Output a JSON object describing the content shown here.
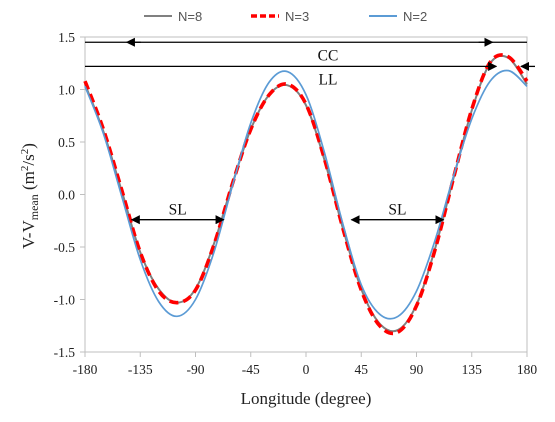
{
  "chart_data": {
    "type": "line",
    "xlabel": "Longitude (degree)",
    "ylabel_main": "V-V",
    "ylabel_sub": "mean",
    "ylabel_unit": " (m",
    "ylabel_sup": "2",
    "ylabel_unit2": "/s",
    "ylabel_sup2": "2",
    "ylabel_close": ")",
    "xlim": [
      -180,
      180
    ],
    "ylim": [
      -1.5,
      1.5
    ],
    "xticks": [
      -180,
      -135,
      -90,
      -45,
      0,
      45,
      90,
      135,
      180
    ],
    "xtick_labels": [
      "-180",
      "-135",
      "-90",
      "-45",
      "0",
      "45",
      "90",
      "135",
      "180"
    ],
    "yticks": [
      -1.5,
      -1.0,
      -0.5,
      0.0,
      0.5,
      1.0,
      1.5
    ],
    "ytick_labels": [
      "-1.5",
      "-1.0",
      "-0.5",
      "0.0",
      "0.5",
      "1.0",
      "1.5"
    ],
    "legend_position": "top",
    "series": [
      {
        "name": "N=8",
        "color": "#808080",
        "style": "solid",
        "x": [
          -180,
          -165,
          -150,
          -135,
          -120,
          -105,
          -90,
          -75,
          -60,
          -45,
          -30,
          -15,
          0,
          15,
          30,
          45,
          60,
          75,
          90,
          105,
          120,
          135,
          150,
          165,
          180
        ],
        "y": [
          1.05,
          0.6,
          0.03,
          -0.55,
          -0.9,
          -1.03,
          -0.9,
          -0.47,
          0.1,
          0.62,
          0.95,
          1.04,
          0.85,
          0.33,
          -0.32,
          -0.9,
          -1.23,
          -1.29,
          -1.05,
          -0.52,
          0.15,
          0.8,
          1.25,
          1.3,
          1.05
        ]
      },
      {
        "name": "N=3",
        "color": "#ff0000",
        "style": "dashed",
        "x": [
          -180,
          -165,
          -150,
          -135,
          -120,
          -105,
          -90,
          -75,
          -60,
          -45,
          -30,
          -15,
          0,
          15,
          30,
          45,
          60,
          75,
          90,
          105,
          120,
          135,
          150,
          165,
          180
        ],
        "y": [
          1.08,
          0.62,
          0.04,
          -0.55,
          -0.92,
          -1.03,
          -0.91,
          -0.48,
          0.1,
          0.62,
          0.95,
          1.05,
          0.86,
          0.34,
          -0.32,
          -0.91,
          -1.25,
          -1.31,
          -1.06,
          -0.53,
          0.15,
          0.81,
          1.26,
          1.31,
          1.08
        ]
      },
      {
        "name": "N=2",
        "color": "#5b9bd5",
        "style": "solid",
        "x": [
          -180,
          -165,
          -150,
          -135,
          -120,
          -105,
          -90,
          -75,
          -60,
          -45,
          -30,
          -15,
          0,
          15,
          30,
          45,
          60,
          75,
          90,
          105,
          120,
          135,
          150,
          165,
          180
        ],
        "y": [
          1.03,
          0.58,
          -0.02,
          -0.62,
          -1.02,
          -1.16,
          -1.0,
          -0.55,
          0.08,
          0.68,
          1.07,
          1.17,
          0.95,
          0.4,
          -0.28,
          -0.86,
          -1.14,
          -1.16,
          -0.92,
          -0.44,
          0.17,
          0.72,
          1.08,
          1.18,
          1.03
        ]
      }
    ],
    "annotations": [
      {
        "label": "CC",
        "y": 1.45,
        "x_from": -180,
        "x_to": 180,
        "arrow": "bidirectional-with-inner-heads",
        "inner_from": -146,
        "inner_to": 152
      },
      {
        "label": "LL",
        "y": 1.22,
        "x_from": -180,
        "x_to": 180,
        "arrow": "right-head-plus-left-head-at-edge",
        "head_at": 155
      },
      {
        "label": "SL",
        "y": -0.24,
        "x_from": -142,
        "x_to": -67,
        "arrow": "bidirectional"
      },
      {
        "label": "SL",
        "y": -0.24,
        "x_from": 37,
        "x_to": 112,
        "arrow": "bidirectional"
      }
    ]
  }
}
